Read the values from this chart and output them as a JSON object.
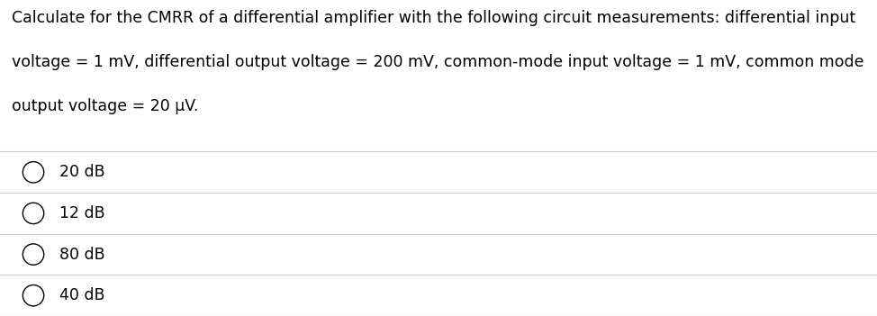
{
  "question_line1": "Calculate for the CMRR of a differential amplifier with the following circuit measurements: differential input",
  "question_line2": "voltage = 1 mV, differential output voltage = 200 mV, common-mode input voltage = 1 mV, common mode",
  "question_line3": "output voltage = 20 μV.",
  "options": [
    "20 dB",
    "12 dB",
    "80 dB",
    "40 dB"
  ],
  "bg_color": "#ffffff",
  "text_color": "#000000",
  "line_color": "#cccccc",
  "font_size": 12.5,
  "option_font_size": 12.5,
  "circle_color": "#000000",
  "circle_facecolor": "#ffffff",
  "fig_width": 9.74,
  "fig_height": 3.51,
  "dpi": 100
}
